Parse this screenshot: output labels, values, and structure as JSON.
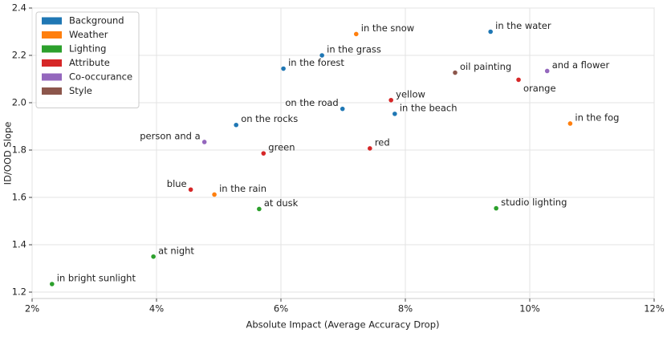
{
  "chart_data": {
    "type": "scatter",
    "x_label": "Absolute Impact (Average Accuracy Drop)",
    "y_label": "ID/OOD Slope",
    "xlim": [
      2,
      12
    ],
    "xticks": [
      {
        "value": 2,
        "label": "2%"
      },
      {
        "value": 4,
        "label": "4%"
      },
      {
        "value": 6,
        "label": "6%"
      },
      {
        "value": 8,
        "label": "8%"
      },
      {
        "value": 10,
        "label": "10%"
      },
      {
        "value": 12,
        "label": "12%"
      }
    ],
    "ylim": [
      1.173,
      2.4
    ],
    "yticks": [
      1.2,
      1.4,
      1.6,
      1.8,
      {
        "value": 2,
        "label": "2.0"
      },
      2.2,
      2.4
    ],
    "grid": true,
    "legend": "upper left",
    "series": [
      {
        "name": "Background",
        "color": "#1f77b4",
        "labels": [
          "in the water",
          "in the grass",
          "in the forest",
          "on the road",
          "in the beach",
          "on the rocks"
        ],
        "x": [
          9.37,
          6.66,
          6.04,
          6.99,
          7.83,
          5.28
        ],
        "values": [
          2.3,
          2.2,
          2.144,
          1.974,
          1.953,
          1.906
        ]
      },
      {
        "name": "Weather",
        "color": "#ff7f0e",
        "labels": [
          "in the snow",
          "in the fog",
          "in the rain"
        ],
        "x": [
          7.21,
          10.65,
          4.93
        ],
        "values": [
          2.29,
          1.912,
          1.612
        ]
      },
      {
        "name": "Lighting",
        "color": "#2ca02c",
        "labels": [
          "studio lighting",
          "at dusk",
          "at night",
          "in bright sunlight"
        ],
        "x": [
          9.46,
          5.65,
          3.95,
          2.32
        ],
        "values": [
          1.554,
          1.551,
          1.35,
          1.234
        ]
      },
      {
        "name": "Attribute",
        "color": "#d62728",
        "labels": [
          "orange",
          "yellow",
          "red",
          "green",
          "blue"
        ],
        "x": [
          9.82,
          7.77,
          7.43,
          5.72,
          4.55
        ],
        "values": [
          2.097,
          2.011,
          1.807,
          1.786,
          1.633
        ]
      },
      {
        "name": "Co-occurance",
        "color": "#9467bd",
        "labels": [
          "and a flower",
          "person and a"
        ],
        "x": [
          10.28,
          4.77
        ],
        "values": [
          2.134,
          1.834
        ]
      },
      {
        "name": "Style",
        "color": "#8c564b",
        "labels": [
          "oil painting"
        ],
        "x": [
          8.8
        ],
        "values": [
          2.127
        ]
      }
    ]
  }
}
